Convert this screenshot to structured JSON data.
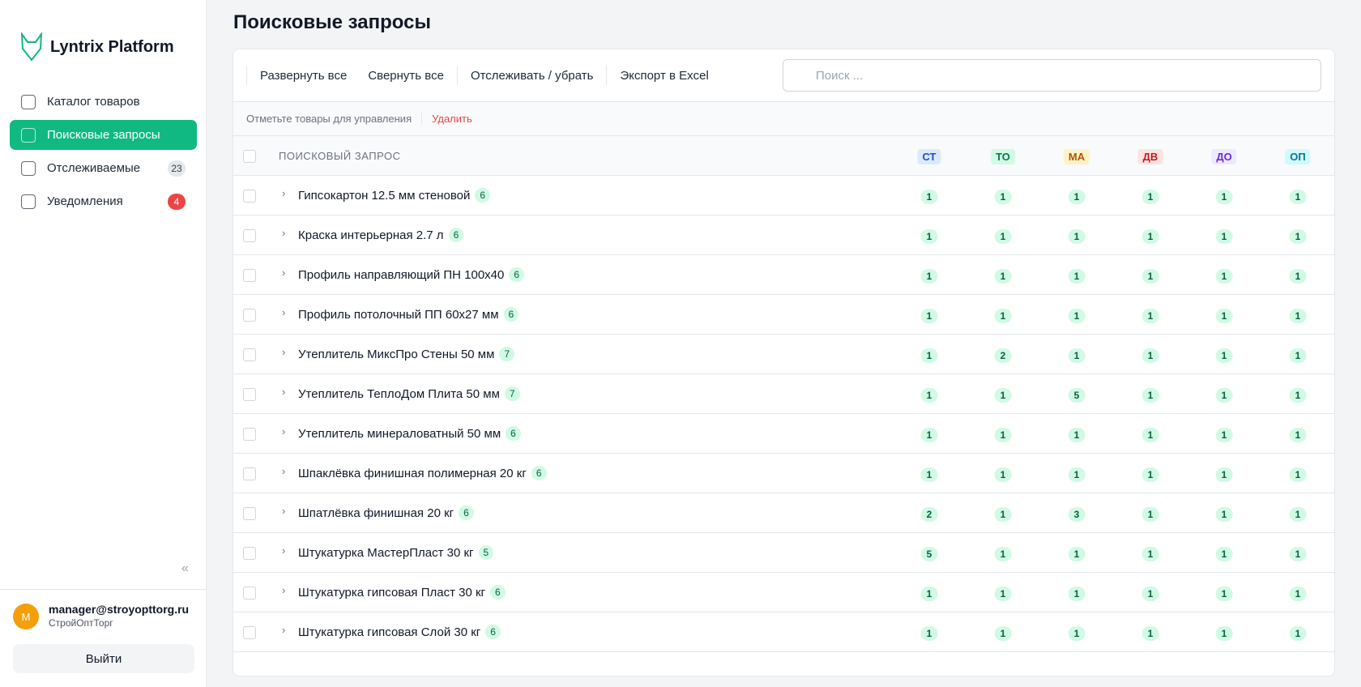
{
  "sidebar": {
    "brand": "Lyntrix Platform",
    "nav": [
      {
        "label": "Каталог товаров"
      },
      {
        "label": "Поисковые запросы"
      },
      {
        "label": "Отслеживаемые",
        "badge": "23"
      },
      {
        "label": "Уведомления",
        "badge": "4"
      }
    ],
    "user": {
      "avatar": "M",
      "email": "manager@stroyopttorg.ru",
      "company": "СтройОптТорг"
    },
    "logout": "Выйти"
  },
  "header": {
    "title": "Поисковые запросы"
  },
  "toolbar": {
    "buttons": [
      "Развернуть все",
      "Свернуть все",
      "Отслеживать / убрать",
      "Экспорт в Excel"
    ],
    "search_placeholder": "Поиск ..."
  },
  "subbar": {
    "hint": "Отметьте товары для управления",
    "delete": "Удалить"
  },
  "table": {
    "query_header": "ПОИСКОВЫЙ ЗАПРОС",
    "columns": [
      "СТ",
      "ТО",
      "МА",
      "ДВ",
      "ДО",
      "ОП"
    ],
    "rows": [
      {
        "name": "Гипсокартон 12.5 мм стеновой",
        "count": 6,
        "values": [
          1,
          1,
          1,
          1,
          1,
          1
        ]
      },
      {
        "name": "Краска интерьерная 2.7 л",
        "count": 6,
        "values": [
          1,
          1,
          1,
          1,
          1,
          1
        ]
      },
      {
        "name": "Профиль направляющий ПН 100х40",
        "count": 6,
        "values": [
          1,
          1,
          1,
          1,
          1,
          1
        ]
      },
      {
        "name": "Профиль потолочный ПП 60х27 мм",
        "count": 6,
        "values": [
          1,
          1,
          1,
          1,
          1,
          1
        ]
      },
      {
        "name": "Утеплитель МиксПро Стены 50 мм",
        "count": 7,
        "values": [
          1,
          2,
          1,
          1,
          1,
          1
        ]
      },
      {
        "name": "Утеплитель ТеплоДом Плита 50 мм",
        "count": 7,
        "values": [
          1,
          1,
          5,
          1,
          1,
          1
        ]
      },
      {
        "name": "Утеплитель минераловатный 50 мм",
        "count": 6,
        "values": [
          1,
          1,
          1,
          1,
          1,
          1
        ]
      },
      {
        "name": "Шпаклёвка финишная полимерная 20 кг",
        "count": 6,
        "values": [
          1,
          1,
          1,
          1,
          1,
          1
        ]
      },
      {
        "name": "Шпатлёвка финишная 20 кг",
        "count": 6,
        "values": [
          2,
          1,
          3,
          1,
          1,
          1
        ]
      },
      {
        "name": "Штукатурка МастерПласт 30 кг",
        "count": 5,
        "values": [
          5,
          1,
          1,
          1,
          1,
          1
        ]
      },
      {
        "name": "Штукатурка гипсовая Пласт 30 кг",
        "count": 6,
        "values": [
          1,
          1,
          1,
          1,
          1,
          1
        ]
      },
      {
        "name": "Штукатурка гипсовая Слой 30 кг",
        "count": 6,
        "values": [
          1,
          1,
          1,
          1,
          1,
          1
        ]
      }
    ]
  }
}
